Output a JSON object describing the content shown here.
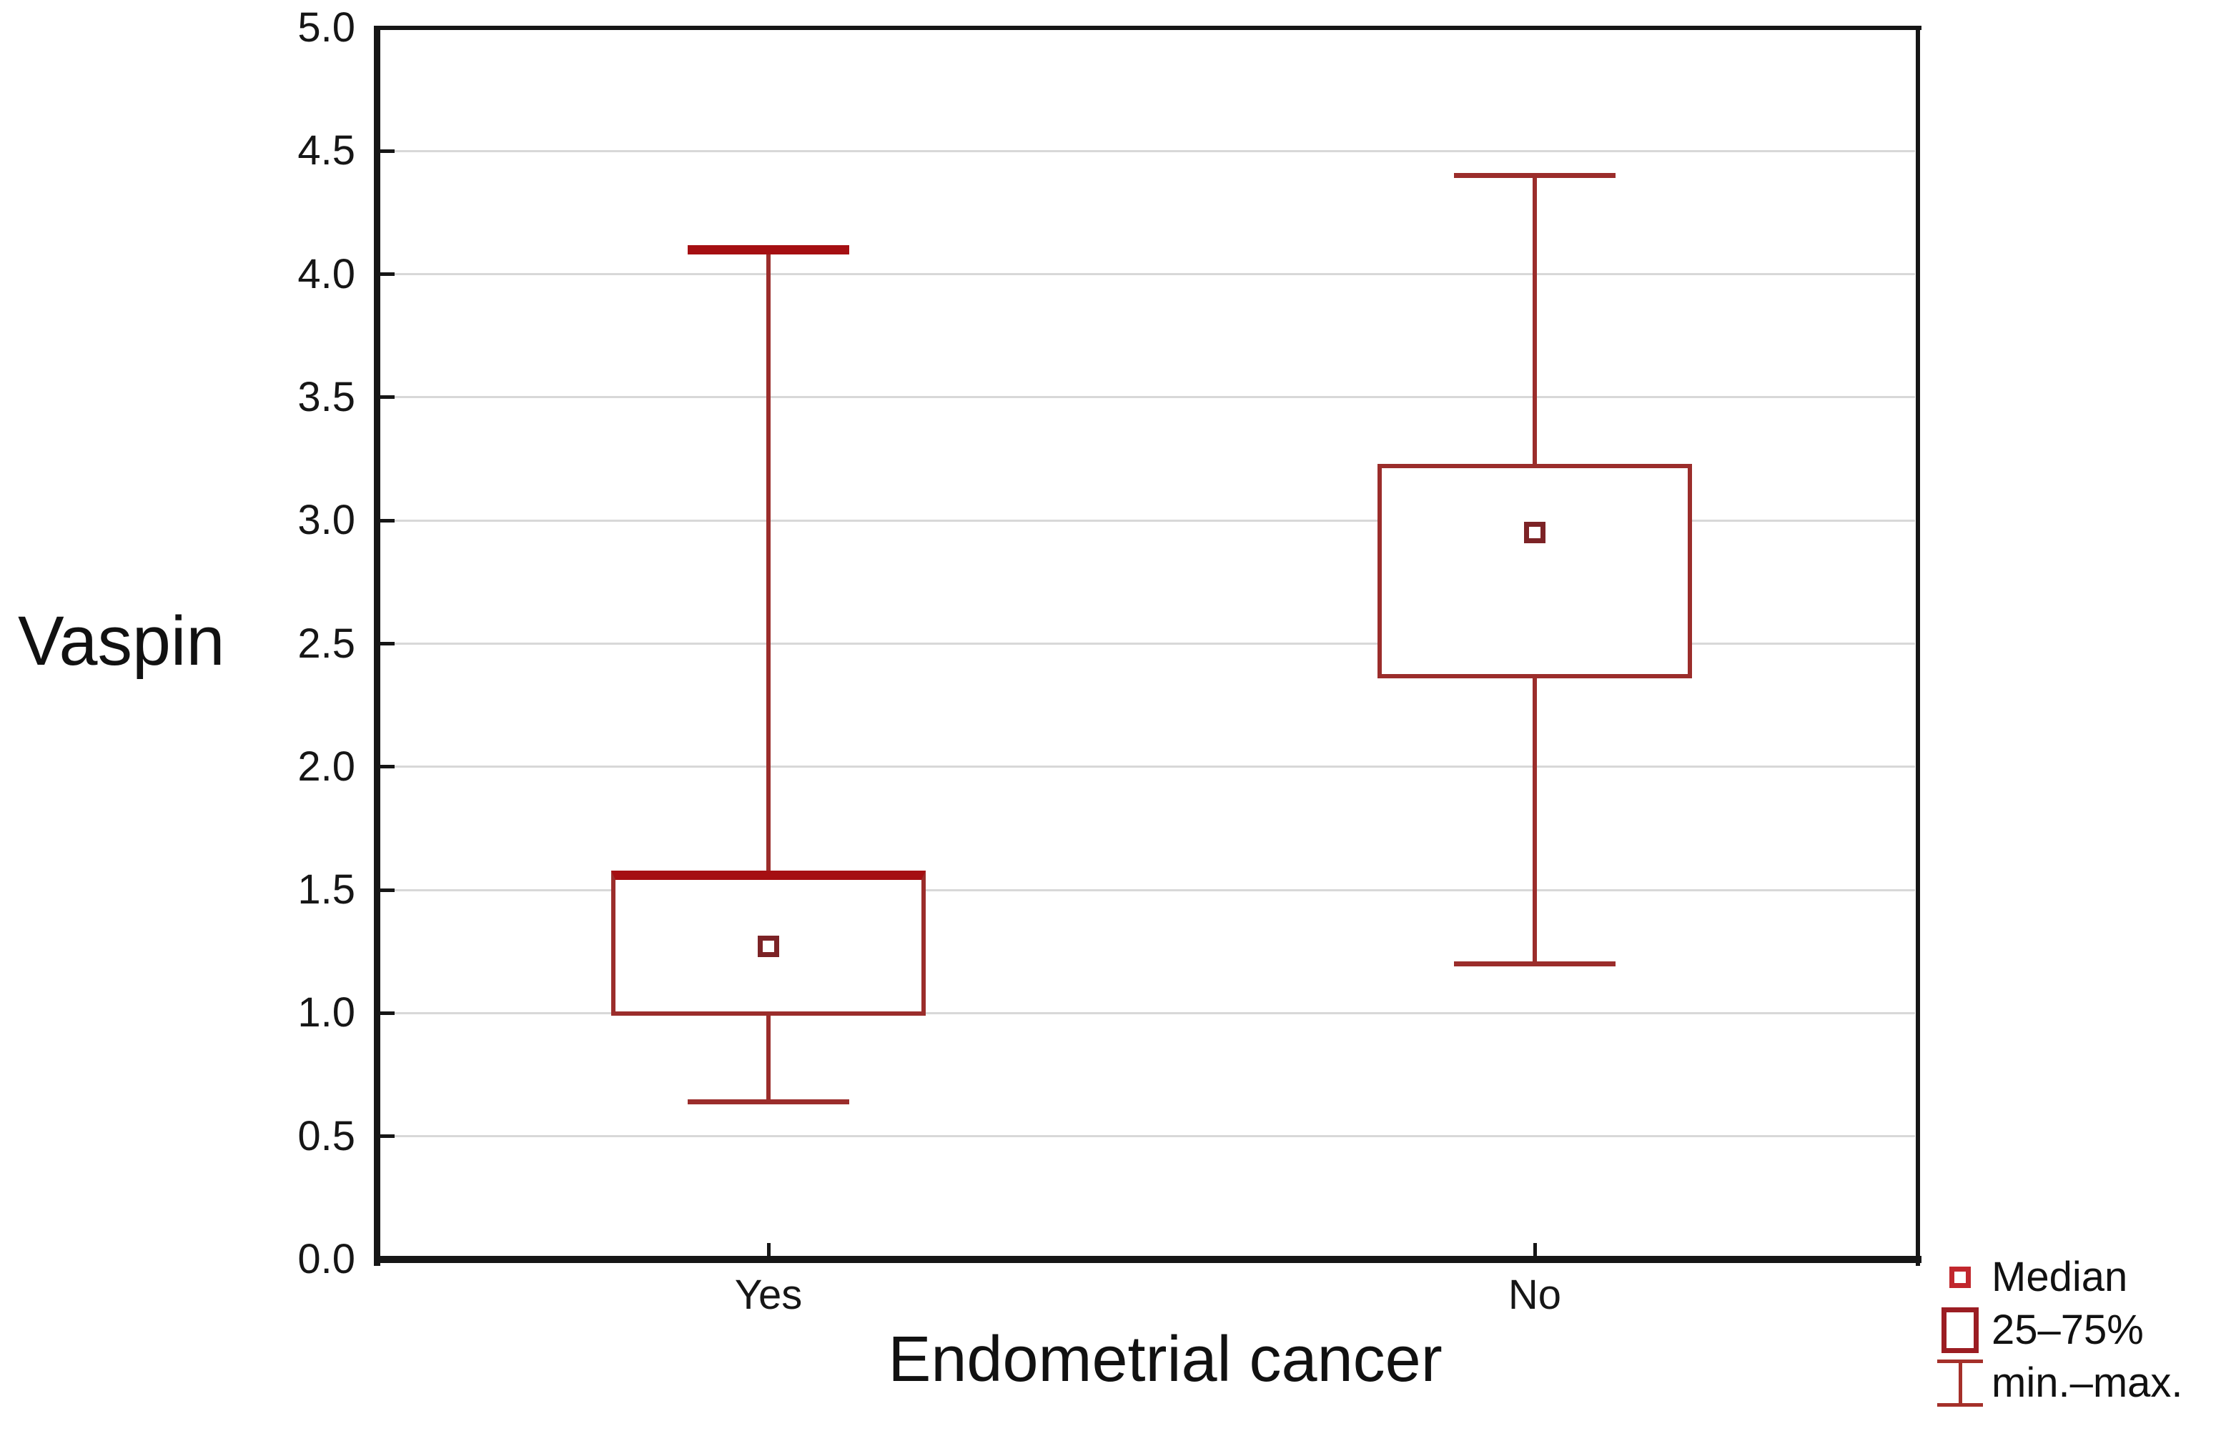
{
  "chart_data": {
    "type": "box",
    "title": "",
    "ylabel": "Vaspin",
    "xlabel": "Endometrial cancer",
    "ylim": [
      0.0,
      5.0
    ],
    "ytick_step": 0.5,
    "ytick_labels": [
      "0.0",
      "0.5",
      "1.0",
      "1.5",
      "2.0",
      "2.5",
      "3.0",
      "3.5",
      "4.0",
      "4.5",
      "5.0"
    ],
    "categories": [
      "Yes",
      "No"
    ],
    "series": [
      {
        "category": "Yes",
        "min": 0.64,
        "q1": 0.99,
        "median": 1.27,
        "q3": 1.58,
        "max": 4.1,
        "emphasized_q3_edge": true,
        "emphasized_max_cap": true
      },
      {
        "category": "No",
        "min": 1.2,
        "q1": 2.36,
        "median": 2.95,
        "q3": 3.23,
        "max": 4.4,
        "emphasized_q3_edge": false,
        "emphasized_max_cap": false
      }
    ],
    "legend": [
      {
        "symbol": "median-square-icon",
        "label": "Median"
      },
      {
        "symbol": "box-icon",
        "label": "25–75%"
      },
      {
        "symbol": "whisker-icon",
        "label": "min.–max."
      }
    ],
    "legend_position": "bottom-right",
    "grid": "horizontal",
    "colors": {
      "background": "#ffffff",
      "frame": "#161616",
      "grid": "#d8d8d8",
      "text": "#161616",
      "box_stroke": "#9b2d2b",
      "whisker_stroke": "#9b2d2b",
      "emphasis_stroke": "#a50f12",
      "median_stroke": "#7c2326",
      "legend_median": "#c1272d",
      "legend_box": "#9b1d23",
      "legend_whisker": "#a5302a"
    }
  }
}
